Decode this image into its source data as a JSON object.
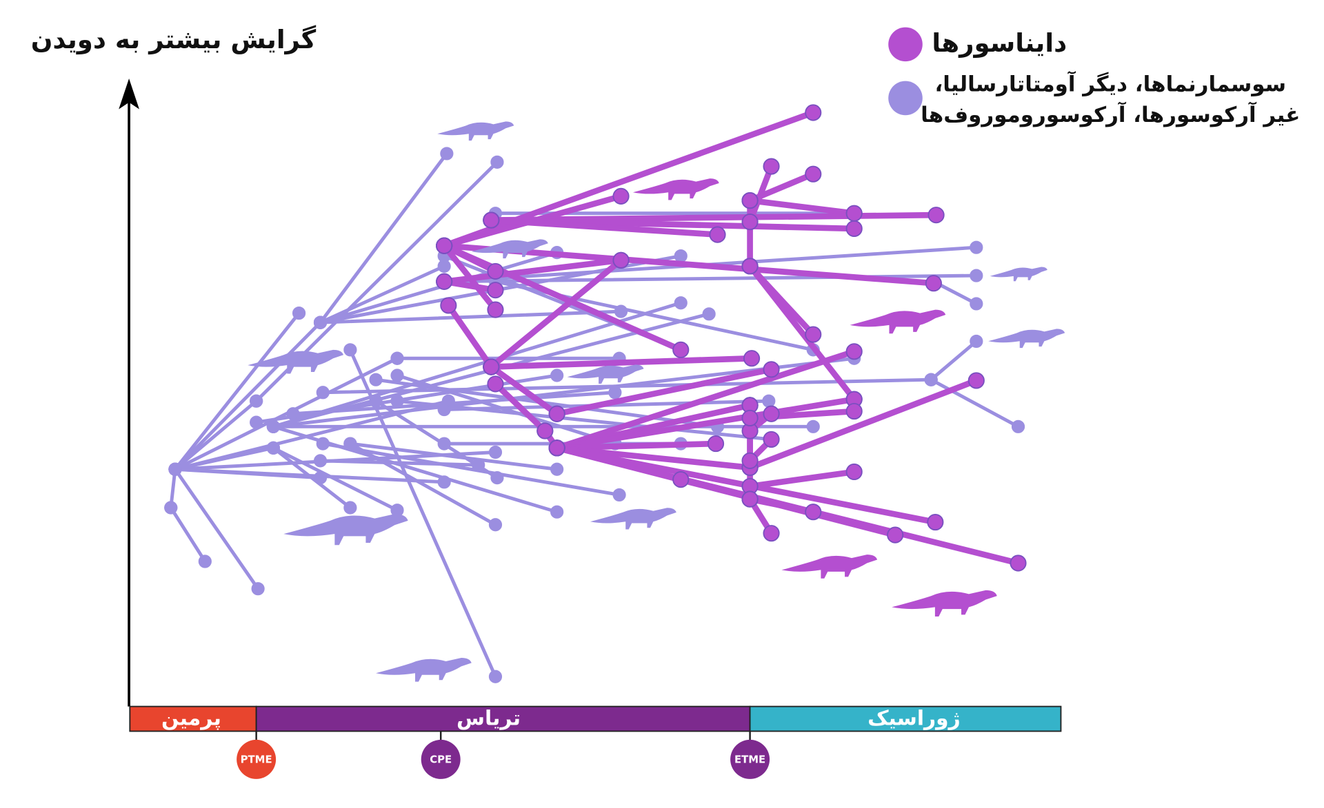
{
  "y_axis_label": "گرایش بیشتر به دویدن",
  "legend": [
    {
      "lines": [
        "دایناسورها"
      ]
    },
    {
      "lines": [
        "سوسمارنماها، دیگر آومتاتارسالیا،",
        "غیر آرکوسورها، آرکوسوروموروف‌ها"
      ]
    }
  ],
  "periods": [
    "پرمین",
    "تریاس",
    "ژوراسیک"
  ],
  "events": [
    "PTME",
    "CPE",
    "ETME"
  ]
}
